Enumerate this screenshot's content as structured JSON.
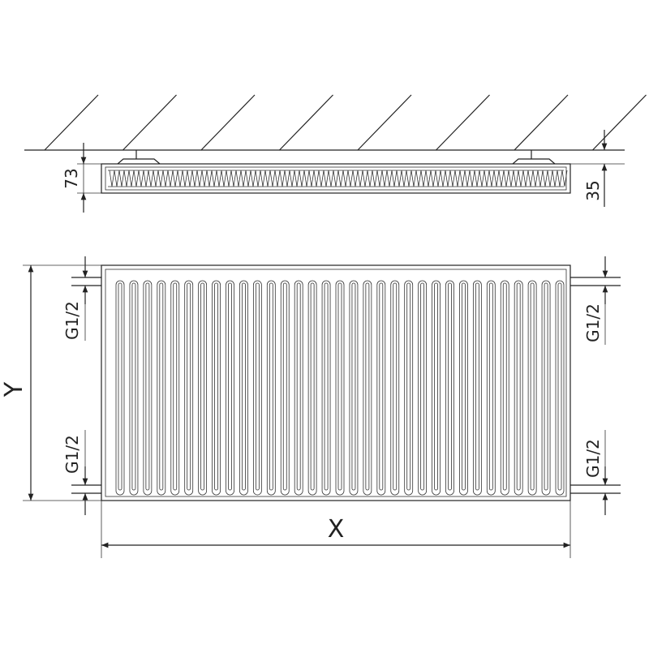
{
  "top_view": {
    "depth_label": "73",
    "wall_offset_label": "35"
  },
  "front_view": {
    "height_label": "Y",
    "width_label": "X",
    "connections": {
      "top_left": "G1/2",
      "bottom_left": "G1/2",
      "top_right": "G1/2",
      "bottom_right": "G1/2"
    },
    "channel_count": 33
  },
  "colors": {
    "line": "#222222",
    "background": "#ffffff"
  }
}
